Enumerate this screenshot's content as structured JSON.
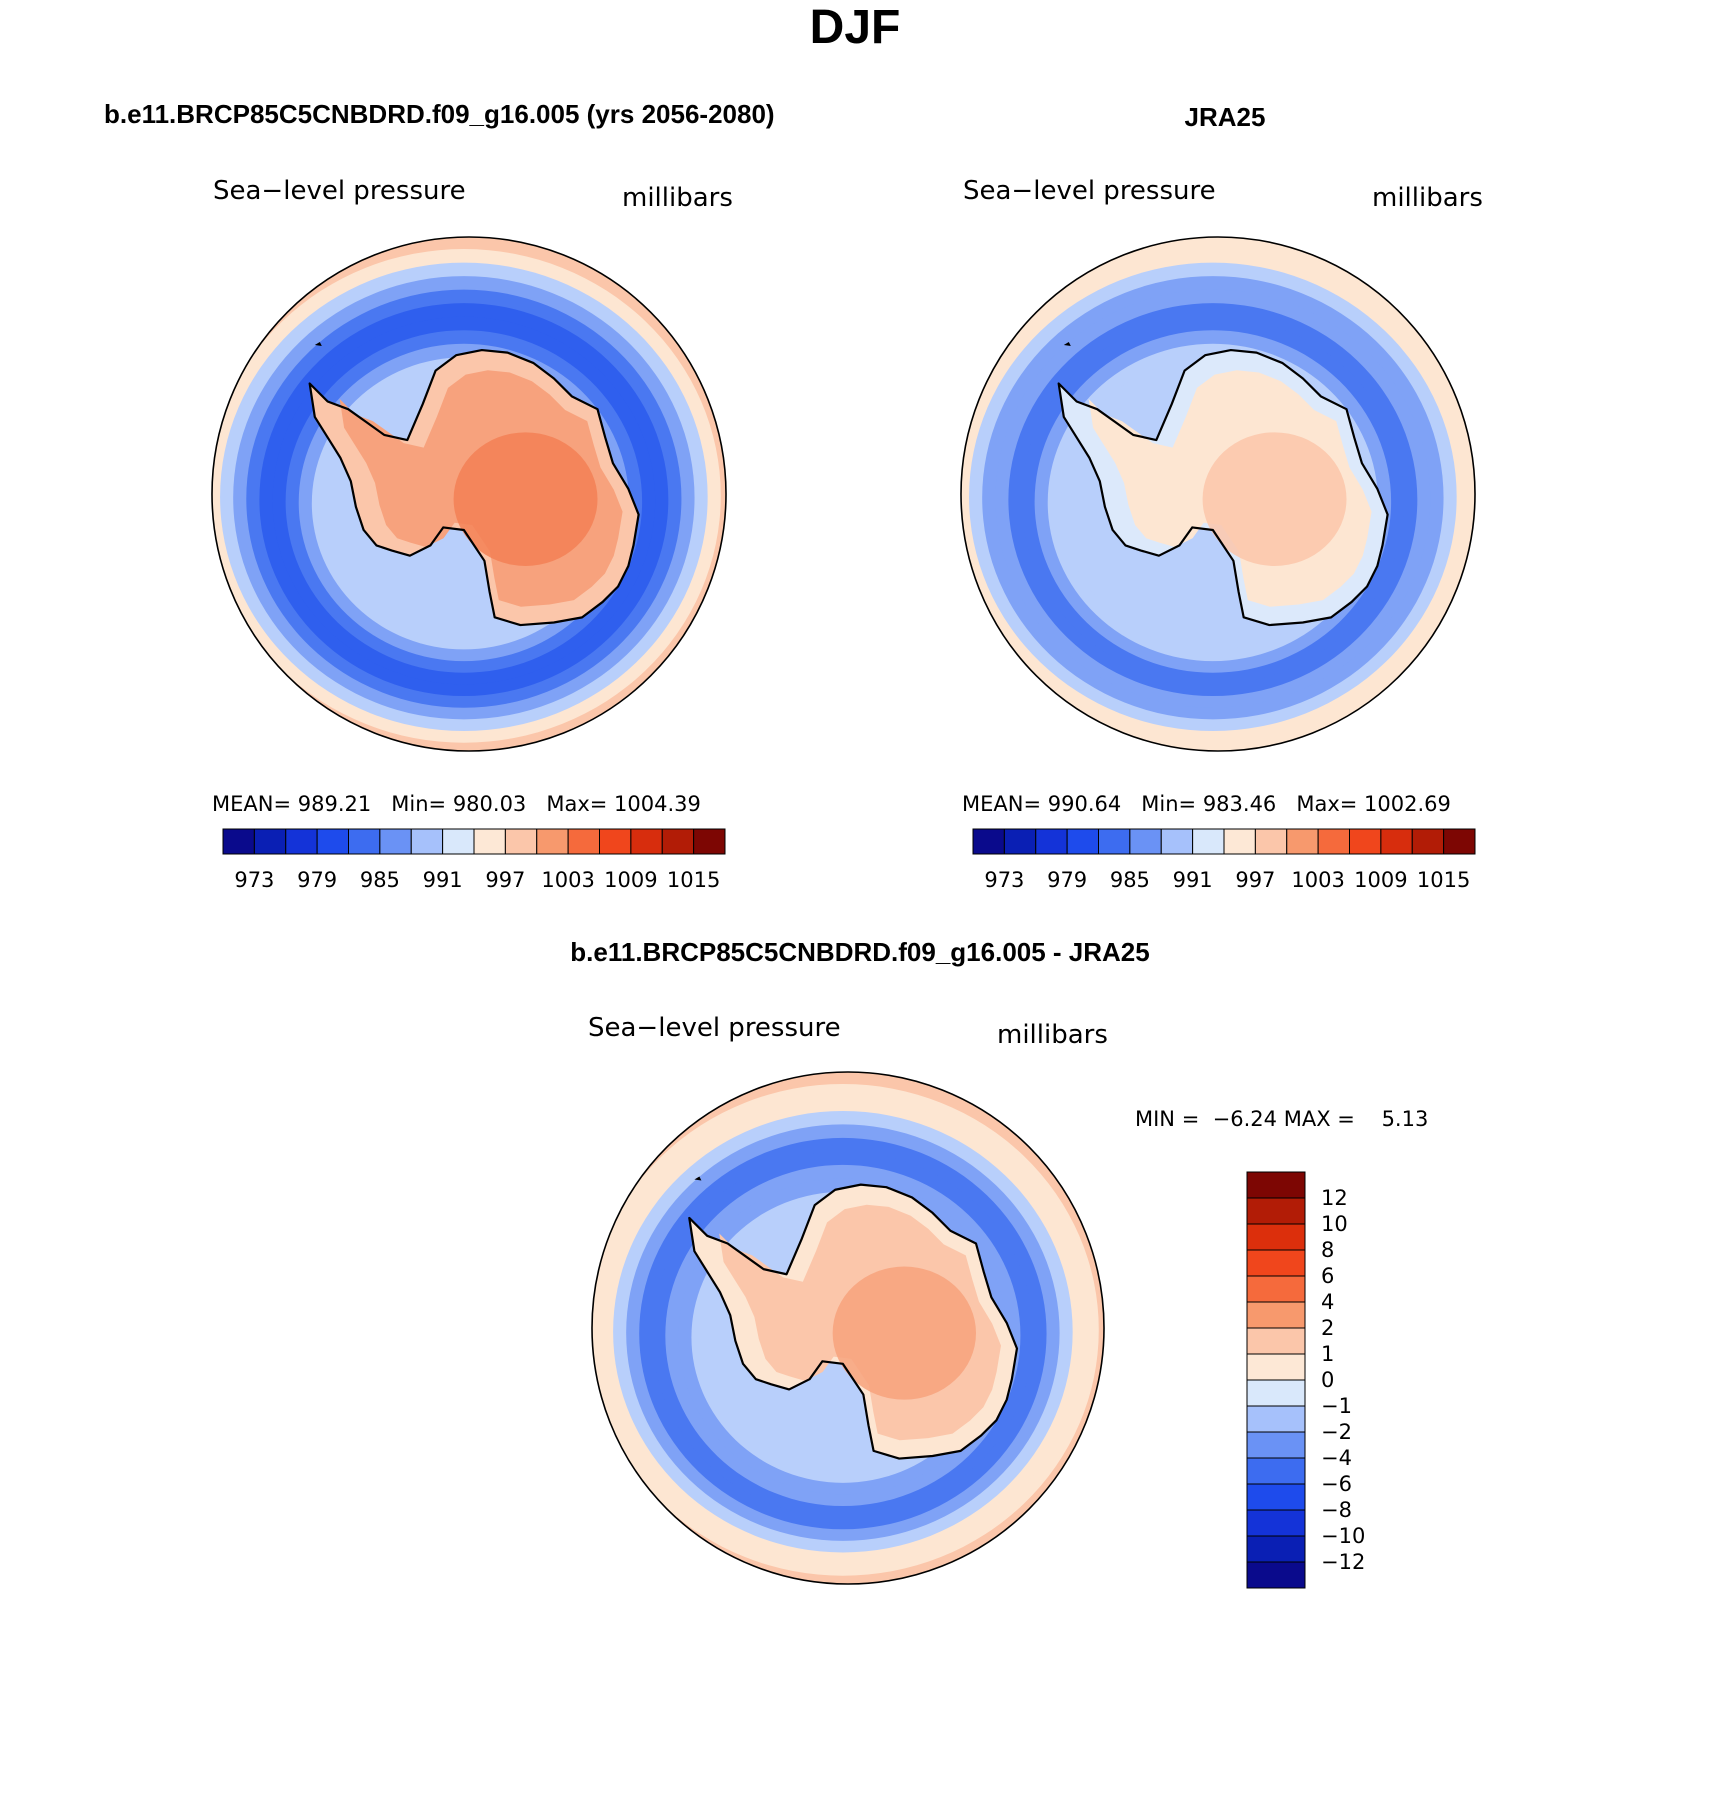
{
  "title": "DJF",
  "panels": [
    {
      "id": "model",
      "header": "b.e11.BRCP85C5CNBDRD.f09_g16.005 (yrs 2056-2080)",
      "variable": "Sea−level pressure",
      "units": "millibars",
      "stats": {
        "mean_label": "MEAN=",
        "mean": "989.21",
        "min_label": "Min=",
        "min": "980.03",
        "max_label": "Max=",
        "max": "1004.39"
      },
      "colorbar": {
        "colors": [
          "#0a0a8c",
          "#0a1fb4",
          "#1433d8",
          "#1e4bec",
          "#3d6cf0",
          "#6a92f5",
          "#a6c1fb",
          "#d9e8fb",
          "#fde8d6",
          "#fbc6aa",
          "#f7996d",
          "#f56a3c",
          "#f0461c",
          "#d72d0d",
          "#b21c06",
          "#7d0603"
        ],
        "labels": [
          "973",
          "979",
          "985",
          "991",
          "997",
          "1003",
          "1009",
          "1015"
        ]
      },
      "map": {
        "rings": [
          -1,
          -2,
          -3,
          -4,
          -4,
          -3,
          -2,
          -1,
          1,
          2,
          3
        ],
        "land_level": 3,
        "land_peak": 4
      }
    },
    {
      "id": "obs",
      "header": "JRA25",
      "variable": "Sea−level pressure",
      "units": "millibars",
      "stats": {
        "mean_label": "MEAN=",
        "mean": "990.64",
        "min_label": "Min=",
        "min": "983.46",
        "max_label": "Max=",
        "max": "1002.69"
      },
      "colorbar": {
        "colors": [
          "#0a0a8c",
          "#0a1fb4",
          "#1433d8",
          "#1e4bec",
          "#3d6cf0",
          "#6a92f5",
          "#a6c1fb",
          "#d9e8fb",
          "#fde8d6",
          "#fbc6aa",
          "#f7996d",
          "#f56a3c",
          "#f0461c",
          "#d72d0d",
          "#b21c06",
          "#7d0603"
        ],
        "labels": [
          "973",
          "979",
          "985",
          "991",
          "997",
          "1003",
          "1009",
          "1015"
        ]
      },
      "map": {
        "rings": [
          -1,
          -1,
          -2,
          -3,
          -3,
          -2,
          -2,
          -1,
          1,
          1,
          2
        ],
        "land_level": 1,
        "land_peak": 2
      }
    }
  ],
  "difference": {
    "header": "b.e11.BRCP85C5CNBDRD.f09_g16.005 - JRA25",
    "variable": "Sea−level pressure",
    "units": "millibars",
    "stats": {
      "min_label": "MIN =",
      "min": "−6.24",
      "max_label": "MAX =",
      "max": "5.13"
    },
    "colorbar": {
      "colors_top_to_bottom": [
        "#7d0603",
        "#b21c06",
        "#dc2f0c",
        "#f0461c",
        "#f56a3c",
        "#f7996d",
        "#fbc6aa",
        "#fde8d6",
        "#d9e8fb",
        "#a6c1fb",
        "#6a92f5",
        "#3d6cf0",
        "#1e4bec",
        "#1433d8",
        "#0a1fb4",
        "#0a0a8c"
      ],
      "labels": [
        "12",
        "10",
        "8",
        "6",
        "4",
        "2",
        "1",
        "0",
        "−1",
        "−2",
        "−4",
        "−6",
        "−8",
        "−10",
        "−12"
      ]
    },
    "map": {
      "rings": [
        -1,
        -2,
        -2,
        -3,
        -3,
        -2,
        -1,
        1,
        1,
        2,
        2
      ],
      "land_level": 2,
      "land_peak": 3
    }
  }
}
